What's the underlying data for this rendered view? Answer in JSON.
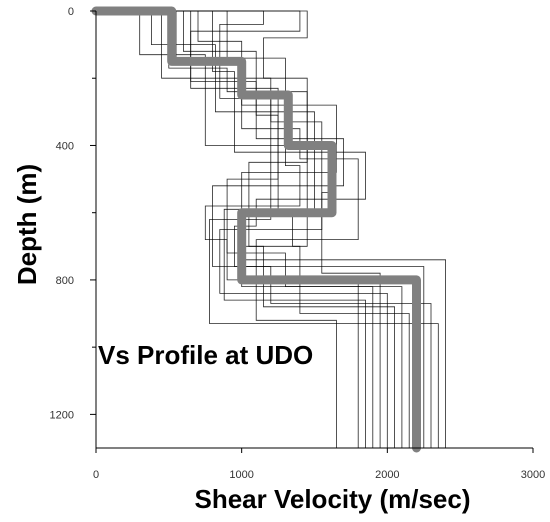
{
  "chart_data": {
    "type": "line",
    "title": "",
    "annotation": "Vs Profile at UDO",
    "xlabel": "Shear Velocity (m/sec)",
    "ylabel": "Depth (m)",
    "xlim": [
      0,
      3000
    ],
    "ylim": [
      1300,
      0
    ],
    "x_ticks": [
      0,
      1000,
      2000,
      3000
    ],
    "y_ticks": [
      0,
      400,
      800,
      1200
    ],
    "grid": false,
    "y_inverted": true,
    "colors": {
      "trial_profiles": "#000000",
      "median_profile": "#808080"
    },
    "series": [
      {
        "role": "median",
        "points": [
          [
            0,
            0
          ],
          [
            520,
            0
          ],
          [
            520,
            150
          ],
          [
            1000,
            150
          ],
          [
            1000,
            250
          ],
          [
            1320,
            250
          ],
          [
            1320,
            400
          ],
          [
            1620,
            400
          ],
          [
            1620,
            600
          ],
          [
            1000,
            600
          ],
          [
            1000,
            800
          ],
          [
            2200,
            800
          ],
          [
            2200,
            1300
          ]
        ]
      },
      {
        "role": "trial",
        "points": [
          [
            0,
            0
          ],
          [
            1450,
            0
          ],
          [
            1450,
            80
          ],
          [
            1150,
            80
          ],
          [
            1150,
            200
          ],
          [
            1450,
            200
          ],
          [
            1450,
            450
          ],
          [
            1050,
            450
          ],
          [
            1050,
            700
          ],
          [
            1150,
            700
          ],
          [
            1150,
            880
          ],
          [
            2050,
            880
          ],
          [
            2050,
            1300
          ]
        ]
      },
      {
        "role": "trial",
        "points": [
          [
            0,
            0
          ],
          [
            1400,
            0
          ],
          [
            1400,
            60
          ],
          [
            650,
            60
          ],
          [
            650,
            230
          ],
          [
            1250,
            230
          ],
          [
            1250,
            500
          ],
          [
            900,
            500
          ],
          [
            900,
            720
          ],
          [
            1300,
            720
          ],
          [
            1300,
            820
          ],
          [
            1900,
            820
          ],
          [
            1900,
            1300
          ]
        ]
      },
      {
        "role": "trial",
        "points": [
          [
            0,
            0
          ],
          [
            600,
            0
          ],
          [
            600,
            120
          ],
          [
            1100,
            120
          ],
          [
            1100,
            380
          ],
          [
            1700,
            380
          ],
          [
            1700,
            520
          ],
          [
            800,
            520
          ],
          [
            800,
            760
          ],
          [
            1200,
            760
          ],
          [
            1200,
            870
          ],
          [
            2300,
            870
          ],
          [
            2300,
            1300
          ]
        ]
      },
      {
        "role": "trial",
        "points": [
          [
            0,
            0
          ],
          [
            380,
            0
          ],
          [
            380,
            100
          ],
          [
            820,
            100
          ],
          [
            820,
            300
          ],
          [
            1500,
            300
          ],
          [
            1500,
            600
          ],
          [
            1350,
            600
          ],
          [
            1350,
            700
          ],
          [
            1400,
            700
          ],
          [
            1400,
            900
          ],
          [
            2150,
            900
          ],
          [
            2150,
            1300
          ]
        ]
      },
      {
        "role": "trial",
        "points": [
          [
            0,
            0
          ],
          [
            800,
            0
          ],
          [
            800,
            180
          ],
          [
            950,
            180
          ],
          [
            950,
            420
          ],
          [
            1850,
            420
          ],
          [
            1850,
            560
          ],
          [
            1100,
            560
          ],
          [
            1100,
            640
          ],
          [
            950,
            640
          ],
          [
            950,
            760
          ],
          [
            2250,
            760
          ],
          [
            2250,
            1300
          ]
        ]
      },
      {
        "role": "trial",
        "points": [
          [
            0,
            0
          ],
          [
            550,
            0
          ],
          [
            550,
            140
          ],
          [
            1300,
            140
          ],
          [
            1300,
            460
          ],
          [
            1400,
            460
          ],
          [
            1400,
            580
          ],
          [
            750,
            580
          ],
          [
            750,
            680
          ],
          [
            900,
            680
          ],
          [
            900,
            800
          ],
          [
            1800,
            800
          ],
          [
            1800,
            1300
          ]
        ]
      },
      {
        "role": "trial",
        "points": [
          [
            0,
            0
          ],
          [
            450,
            0
          ],
          [
            450,
            200
          ],
          [
            1200,
            200
          ],
          [
            1200,
            330
          ],
          [
            1550,
            330
          ],
          [
            1550,
            650
          ],
          [
            850,
            650
          ],
          [
            850,
            840
          ],
          [
            2000,
            840
          ],
          [
            2000,
            1300
          ]
        ]
      },
      {
        "role": "trial",
        "points": [
          [
            0,
            0
          ],
          [
            700,
            0
          ],
          [
            700,
            90
          ],
          [
            1000,
            90
          ],
          [
            1000,
            280
          ],
          [
            1650,
            280
          ],
          [
            1650,
            480
          ],
          [
            1000,
            480
          ],
          [
            1000,
            740
          ],
          [
            2400,
            740
          ],
          [
            2400,
            1300
          ]
        ]
      },
      {
        "role": "trial",
        "points": [
          [
            0,
            0
          ],
          [
            900,
            0
          ],
          [
            900,
            160
          ],
          [
            1000,
            160
          ],
          [
            1000,
            350
          ],
          [
            1400,
            350
          ],
          [
            1400,
            440
          ],
          [
            1800,
            440
          ],
          [
            1800,
            680
          ],
          [
            1100,
            680
          ],
          [
            1100,
            920
          ],
          [
            1650,
            920
          ],
          [
            1650,
            1300
          ]
        ]
      },
      {
        "role": "trial",
        "points": [
          [
            0,
            0
          ],
          [
            1150,
            0
          ],
          [
            1150,
            40
          ],
          [
            850,
            40
          ],
          [
            850,
            260
          ],
          [
            1200,
            260
          ],
          [
            1200,
            620
          ],
          [
            780,
            620
          ],
          [
            780,
            930
          ],
          [
            2350,
            930
          ],
          [
            2350,
            1300
          ]
        ]
      },
      {
        "role": "trial",
        "points": [
          [
            0,
            0
          ],
          [
            300,
            0
          ],
          [
            300,
            130
          ],
          [
            750,
            130
          ],
          [
            750,
            400
          ],
          [
            1600,
            400
          ],
          [
            1600,
            540
          ],
          [
            1550,
            540
          ],
          [
            1550,
            780
          ],
          [
            1950,
            780
          ],
          [
            1950,
            1300
          ]
        ]
      },
      {
        "role": "trial",
        "points": [
          [
            0,
            0
          ],
          [
            650,
            0
          ],
          [
            650,
            210
          ],
          [
            1100,
            210
          ],
          [
            1100,
            310
          ],
          [
            1250,
            310
          ],
          [
            1250,
            590
          ],
          [
            880,
            590
          ],
          [
            880,
            860
          ],
          [
            1850,
            860
          ],
          [
            1850,
            1300
          ]
        ]
      },
      {
        "role": "trial",
        "points": [
          [
            0,
            0
          ],
          [
            500,
            0
          ],
          [
            500,
            170
          ],
          [
            900,
            170
          ],
          [
            900,
            240
          ],
          [
            1450,
            240
          ],
          [
            1450,
            700
          ],
          [
            1000,
            700
          ],
          [
            1000,
            820
          ],
          [
            2100,
            820
          ],
          [
            2100,
            1300
          ]
        ]
      }
    ]
  }
}
